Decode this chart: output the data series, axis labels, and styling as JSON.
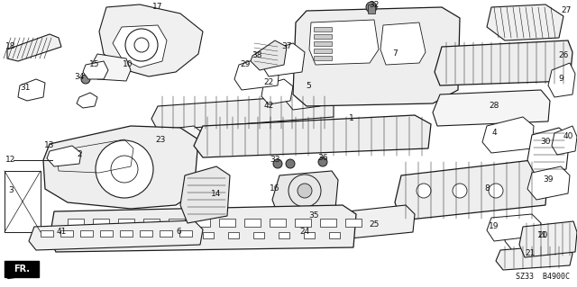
{
  "bg_color": "#ffffff",
  "fig_width": 6.4,
  "fig_height": 3.19,
  "dpi": 100,
  "diagram_code": "SZ33 B4900C",
  "image_b64": ""
}
